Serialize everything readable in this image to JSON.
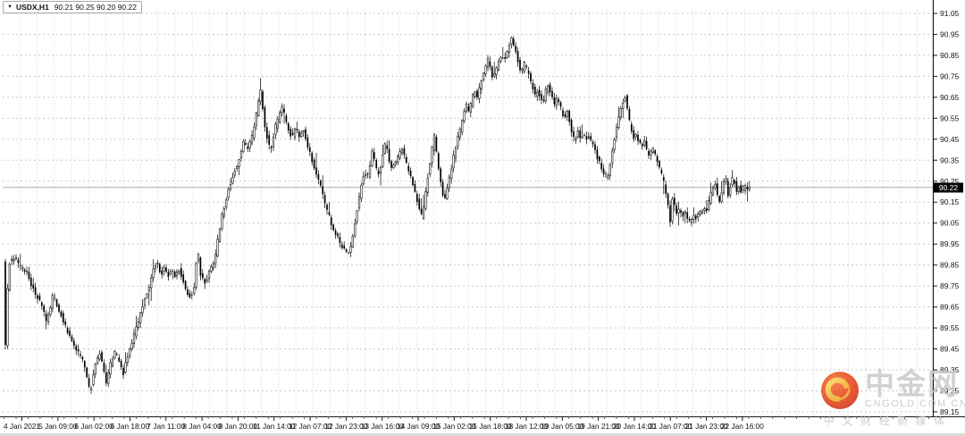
{
  "window": {
    "symbol": "USDX,H1",
    "ohlc_label": "90.21 90.25 90.20 90.22",
    "dropdown_icon": "triangle-down"
  },
  "price_axis": {
    "current_price": "90.22",
    "ticks": [
      "91.05",
      "90.95",
      "90.85",
      "90.75",
      "90.65",
      "90.55",
      "90.45",
      "90.35",
      "90.25",
      "90.15",
      "90.05",
      "89.95",
      "89.85",
      "89.75",
      "89.65",
      "89.55",
      "89.45",
      "89.35",
      "89.25",
      "89.15"
    ]
  },
  "time_axis": {
    "ticks": [
      "4 Jan 2021",
      "5 Jan 09:00",
      "6 Jan 02:00",
      "6 Jan 18:00",
      "7 Jan 11:00",
      "8 Jan 04:00",
      "8 Jan 20:00",
      "11 Jan 14:00",
      "12 Jan 07:00",
      "12 Jan 23:00",
      "13 Jan 16:00",
      "14 Jan 09:00",
      "15 Jan 02:00",
      "15 Jan 18:00",
      "18 Jan 12:00",
      "19 Jan 05:00",
      "19 Jan 21:00",
      "20 Jan 14:00",
      "21 Jan 07:00",
      "21 Jan 23:00",
      "22 Jan 16:00"
    ]
  },
  "watermark": {
    "brand": "中金网",
    "domain": "CNGOLD.COM.CN",
    "tagline": "中文财经新媒体",
    "logo_red": "#e23a12",
    "logo_red_light": "#f2682a",
    "logo_gold": "#f7c03c",
    "logo_gold_deep": "#e8960f"
  },
  "chart_data": {
    "type": "candlestick",
    "symbol": "USDX",
    "timeframe": "H1",
    "title": "USDX H1 candlestick chart, 4-22 Jan 2021",
    "last_bar": {
      "open": 90.21,
      "high": 90.25,
      "low": 90.2,
      "close": 90.22
    },
    "y_ticks": [
      91.05,
      90.95,
      90.85,
      90.75,
      90.65,
      90.55,
      90.45,
      90.35,
      90.25,
      90.15,
      90.05,
      89.95,
      89.85,
      89.75,
      89.65,
      89.55,
      89.45,
      89.35,
      89.25,
      89.15
    ],
    "ylim": [
      89.13,
      91.07
    ],
    "grid": true,
    "key_points": {
      "period_high": 90.95,
      "period_high_near": "18 Jan",
      "period_low": 89.22,
      "period_low_near": "6 Jan",
      "close": 90.22
    },
    "price_path": [
      [
        5,
        89.87
      ],
      [
        6,
        89.58
      ],
      [
        7,
        89.44
      ],
      [
        9,
        89.7
      ],
      [
        12,
        89.86
      ],
      [
        18,
        89.88
      ],
      [
        24,
        89.84
      ],
      [
        30,
        89.82
      ],
      [
        40,
        89.72
      ],
      [
        48,
        89.66
      ],
      [
        53,
        89.57
      ],
      [
        60,
        89.7
      ],
      [
        68,
        89.63
      ],
      [
        75,
        89.55
      ],
      [
        82,
        89.48
      ],
      [
        88,
        89.44
      ],
      [
        95,
        89.38
      ],
      [
        99,
        89.3
      ],
      [
        102,
        89.24
      ],
      [
        105,
        89.32
      ],
      [
        109,
        89.4
      ],
      [
        113,
        89.43
      ],
      [
        116,
        89.38
      ],
      [
        120,
        89.29
      ],
      [
        125,
        89.38
      ],
      [
        130,
        89.44
      ],
      [
        135,
        89.38
      ],
      [
        139,
        89.33
      ],
      [
        144,
        89.42
      ],
      [
        150,
        89.5
      ],
      [
        156,
        89.58
      ],
      [
        162,
        89.68
      ],
      [
        168,
        89.75
      ],
      [
        173,
        89.83
      ],
      [
        177,
        89.87
      ],
      [
        181,
        89.8
      ],
      [
        185,
        89.84
      ],
      [
        189,
        89.79
      ],
      [
        193,
        89.84
      ],
      [
        197,
        89.8
      ],
      [
        201,
        89.84
      ],
      [
        205,
        89.78
      ],
      [
        209,
        89.74
      ],
      [
        213,
        89.7
      ],
      [
        217,
        89.72
      ],
      [
        220,
        89.78
      ],
      [
        222,
        89.98
      ],
      [
        224,
        89.84
      ],
      [
        226,
        89.8
      ],
      [
        230,
        89.76
      ],
      [
        234,
        89.8
      ],
      [
        238,
        89.84
      ],
      [
        242,
        89.88
      ],
      [
        246,
        90.0
      ],
      [
        250,
        90.1
      ],
      [
        254,
        90.16
      ],
      [
        258,
        90.22
      ],
      [
        262,
        90.28
      ],
      [
        266,
        90.32
      ],
      [
        270,
        90.38
      ],
      [
        274,
        90.44
      ],
      [
        278,
        90.4
      ],
      [
        282,
        90.44
      ],
      [
        286,
        90.52
      ],
      [
        290,
        90.62
      ],
      [
        293,
        90.69
      ],
      [
        295,
        90.6
      ],
      [
        298,
        90.5
      ],
      [
        301,
        90.44
      ],
      [
        304,
        90.4
      ],
      [
        307,
        90.46
      ],
      [
        310,
        90.52
      ],
      [
        314,
        90.56
      ],
      [
        317,
        90.61
      ],
      [
        320,
        90.55
      ],
      [
        324,
        90.49
      ],
      [
        328,
        90.46
      ],
      [
        332,
        90.51
      ],
      [
        336,
        90.46
      ],
      [
        340,
        90.5
      ],
      [
        344,
        90.44
      ],
      [
        348,
        90.38
      ],
      [
        352,
        90.33
      ],
      [
        356,
        90.28
      ],
      [
        360,
        90.23
      ],
      [
        364,
        90.16
      ],
      [
        368,
        90.1
      ],
      [
        372,
        90.05
      ],
      [
        376,
        90.0
      ],
      [
        380,
        89.97
      ],
      [
        384,
        89.94
      ],
      [
        388,
        89.92
      ],
      [
        391,
        89.9
      ],
      [
        394,
        89.95
      ],
      [
        397,
        90.02
      ],
      [
        400,
        90.1
      ],
      [
        403,
        90.17
      ],
      [
        406,
        90.24
      ],
      [
        409,
        90.3
      ],
      [
        412,
        90.26
      ],
      [
        415,
        90.32
      ],
      [
        418,
        90.4
      ],
      [
        421,
        90.33
      ],
      [
        424,
        90.28
      ],
      [
        427,
        90.32
      ],
      [
        430,
        90.38
      ],
      [
        433,
        90.45
      ],
      [
        436,
        90.36
      ],
      [
        439,
        90.31
      ],
      [
        442,
        90.33
      ],
      [
        445,
        90.35
      ],
      [
        448,
        90.38
      ],
      [
        451,
        90.4
      ],
      [
        454,
        90.36
      ],
      [
        457,
        90.32
      ],
      [
        460,
        90.28
      ],
      [
        463,
        90.24
      ],
      [
        466,
        90.19
      ],
      [
        469,
        90.14
      ],
      [
        472,
        90.07
      ],
      [
        475,
        90.12
      ],
      [
        478,
        90.22
      ],
      [
        481,
        90.3
      ],
      [
        484,
        90.38
      ],
      [
        487,
        90.47
      ],
      [
        490,
        90.38
      ],
      [
        493,
        90.28
      ],
      [
        496,
        90.2
      ],
      [
        499,
        90.17
      ],
      [
        502,
        90.22
      ],
      [
        505,
        90.28
      ],
      [
        508,
        90.35
      ],
      [
        511,
        90.41
      ],
      [
        514,
        90.46
      ],
      [
        517,
        90.51
      ],
      [
        520,
        90.56
      ],
      [
        523,
        90.62
      ],
      [
        526,
        90.57
      ],
      [
        529,
        90.63
      ],
      [
        532,
        90.69
      ],
      [
        535,
        90.64
      ],
      [
        538,
        90.7
      ],
      [
        541,
        90.74
      ],
      [
        544,
        90.78
      ],
      [
        547,
        90.83
      ],
      [
        550,
        90.78
      ],
      [
        553,
        90.74
      ],
      [
        556,
        90.78
      ],
      [
        559,
        90.82
      ],
      [
        562,
        90.85
      ],
      [
        565,
        90.82
      ],
      [
        568,
        90.86
      ],
      [
        571,
        90.9
      ],
      [
        574,
        90.93
      ],
      [
        576,
        90.9
      ],
      [
        579,
        90.85
      ],
      [
        582,
        90.8
      ],
      [
        585,
        90.77
      ],
      [
        588,
        90.81
      ],
      [
        591,
        90.78
      ],
      [
        594,
        90.74
      ],
      [
        597,
        90.7
      ],
      [
        600,
        90.66
      ],
      [
        603,
        90.69
      ],
      [
        606,
        90.65
      ],
      [
        609,
        90.62
      ],
      [
        612,
        90.68
      ],
      [
        615,
        90.71
      ],
      [
        618,
        90.66
      ],
      [
        621,
        90.61
      ],
      [
        624,
        90.65
      ],
      [
        627,
        90.62
      ],
      [
        630,
        90.58
      ],
      [
        633,
        90.55
      ],
      [
        636,
        90.58
      ],
      [
        639,
        90.52
      ],
      [
        642,
        90.47
      ],
      [
        645,
        90.44
      ],
      [
        648,
        90.49
      ],
      [
        651,
        90.46
      ],
      [
        654,
        90.48
      ],
      [
        657,
        90.45
      ],
      [
        660,
        90.47
      ],
      [
        663,
        90.44
      ],
      [
        666,
        90.41
      ],
      [
        669,
        90.37
      ],
      [
        672,
        90.34
      ],
      [
        675,
        90.31
      ],
      [
        678,
        90.28
      ],
      [
        681,
        90.27
      ],
      [
        684,
        90.33
      ],
      [
        687,
        90.41
      ],
      [
        690,
        90.48
      ],
      [
        693,
        90.54
      ],
      [
        696,
        90.6
      ],
      [
        699,
        90.64
      ],
      [
        701,
        90.66
      ],
      [
        704,
        90.57
      ],
      [
        707,
        90.5
      ],
      [
        710,
        90.45
      ],
      [
        713,
        90.48
      ],
      [
        716,
        90.44
      ],
      [
        719,
        90.41
      ],
      [
        722,
        90.44
      ],
      [
        725,
        90.4
      ],
      [
        728,
        90.36
      ],
      [
        731,
        90.41
      ],
      [
        734,
        90.38
      ],
      [
        737,
        90.34
      ],
      [
        740,
        90.3
      ],
      [
        743,
        90.26
      ],
      [
        746,
        90.21
      ],
      [
        749,
        90.13
      ],
      [
        751,
        90.05
      ],
      [
        753,
        90.17
      ],
      [
        756,
        90.13
      ],
      [
        759,
        90.09
      ],
      [
        762,
        90.12
      ],
      [
        765,
        90.08
      ],
      [
        768,
        90.11
      ],
      [
        771,
        90.07
      ],
      [
        774,
        90.05
      ],
      [
        777,
        90.09
      ],
      [
        780,
        90.07
      ],
      [
        783,
        90.11
      ],
      [
        786,
        90.09
      ],
      [
        789,
        90.13
      ],
      [
        792,
        90.11
      ],
      [
        795,
        90.16
      ],
      [
        798,
        90.21
      ],
      [
        801,
        90.25
      ],
      [
        804,
        90.19
      ],
      [
        807,
        90.15
      ],
      [
        810,
        90.21
      ],
      [
        813,
        90.28
      ],
      [
        816,
        90.19
      ],
      [
        819,
        90.23
      ],
      [
        822,
        90.28
      ],
      [
        825,
        90.2
      ],
      [
        828,
        90.23
      ],
      [
        831,
        90.19
      ],
      [
        834,
        90.23
      ],
      [
        837,
        90.2
      ],
      [
        839,
        90.22
      ]
    ]
  }
}
